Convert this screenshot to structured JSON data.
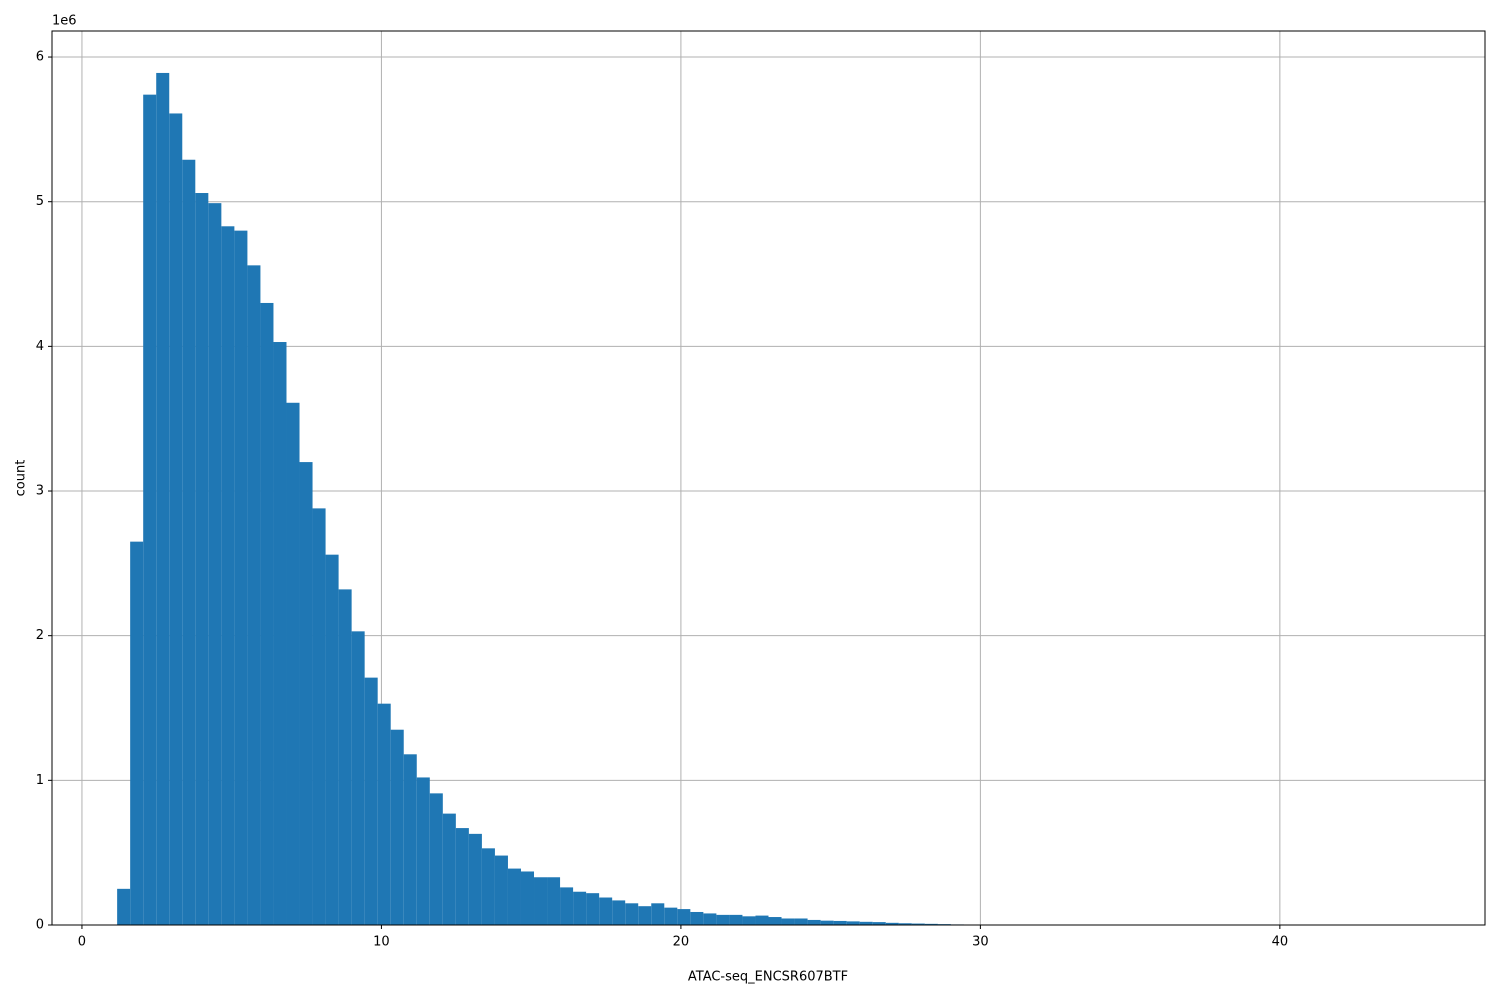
{
  "chart_data": {
    "type": "histogram",
    "x_label": "ATAC-seq_ENCSR607BTF",
    "y_label": "count",
    "y_offset_label": "1e6",
    "color": "#1f77b4",
    "grid": true,
    "bins": [
      1.175,
      1.61,
      2.045,
      2.48,
      2.915,
      3.35,
      3.785,
      4.22,
      4.655,
      5.09,
      5.525,
      5.96,
      6.395,
      6.83,
      7.265,
      7.7,
      8.135,
      8.57,
      9.005,
      9.44,
      9.875,
      10.31,
      10.745,
      11.18,
      11.615,
      12.05,
      12.485,
      12.92,
      13.355,
      13.79,
      14.225,
      14.66,
      15.095,
      15.53,
      15.965,
      16.4,
      16.835,
      17.27,
      17.705,
      18.14,
      18.575,
      19.01,
      19.445,
      19.88,
      20.315,
      20.75,
      21.185,
      21.62,
      22.055,
      22.49,
      22.925,
      23.36,
      23.795,
      24.23,
      24.665,
      25.1,
      25.535,
      25.97,
      26.405,
      26.84,
      27.275,
      27.71,
      28.145,
      28.58,
      29.015,
      29.45,
      29.885,
      30.32,
      30.755,
      31.19,
      31.625,
      32.06,
      32.495,
      32.93,
      33.365,
      33.8,
      34.235,
      34.67,
      35.105,
      35.54,
      35.975,
      36.41,
      36.845,
      37.28,
      37.715,
      38.15,
      38.585,
      39.02,
      39.455,
      39.89,
      40.325,
      40.76,
      41.195,
      41.63,
      42.065,
      42.5,
      42.935,
      43.37,
      43.805,
      44.24,
      44.675
    ],
    "values": [
      250000,
      2650000,
      5740000,
      5890000,
      5610000,
      5290000,
      5060000,
      4990000,
      4830000,
      4800000,
      4560000,
      4300000,
      4030000,
      3610000,
      3200000,
      2880000,
      2560000,
      2320000,
      2030000,
      1710000,
      1530000,
      1350000,
      1180000,
      1020000,
      910000,
      770000,
      670000,
      630000,
      530000,
      480000,
      390000,
      370000,
      330000,
      330000,
      260000,
      230000,
      220000,
      190000,
      170000,
      150000,
      130000,
      150000,
      120000,
      110000,
      90000,
      80000,
      70000,
      70000,
      60000,
      65000,
      55000,
      45000,
      45000,
      35000,
      30000,
      28000,
      25000,
      22000,
      20000,
      15000,
      12000,
      10000,
      8000,
      6000,
      4000,
      3000,
      2000,
      1500,
      1000,
      800,
      600,
      500,
      400,
      300,
      250,
      200,
      150,
      120,
      100,
      80,
      60,
      50,
      40,
      30,
      25,
      20,
      15,
      10,
      8,
      6,
      5,
      4,
      3,
      2,
      2,
      1,
      1,
      1,
      1,
      1
    ],
    "xlim": [
      -1.0,
      46.85
    ],
    "ylim": [
      0,
      6180000
    ],
    "xticks": [
      0,
      10,
      20,
      30,
      40
    ],
    "yticks": [
      0,
      {
        "value": 1000000,
        "label": "1"
      },
      {
        "value": 2000000,
        "label": "2"
      },
      {
        "value": 3000000,
        "label": "3"
      },
      {
        "value": 4000000,
        "label": "4"
      },
      {
        "value": 5000000,
        "label": "5"
      },
      {
        "value": 6000000,
        "label": "6"
      }
    ]
  }
}
